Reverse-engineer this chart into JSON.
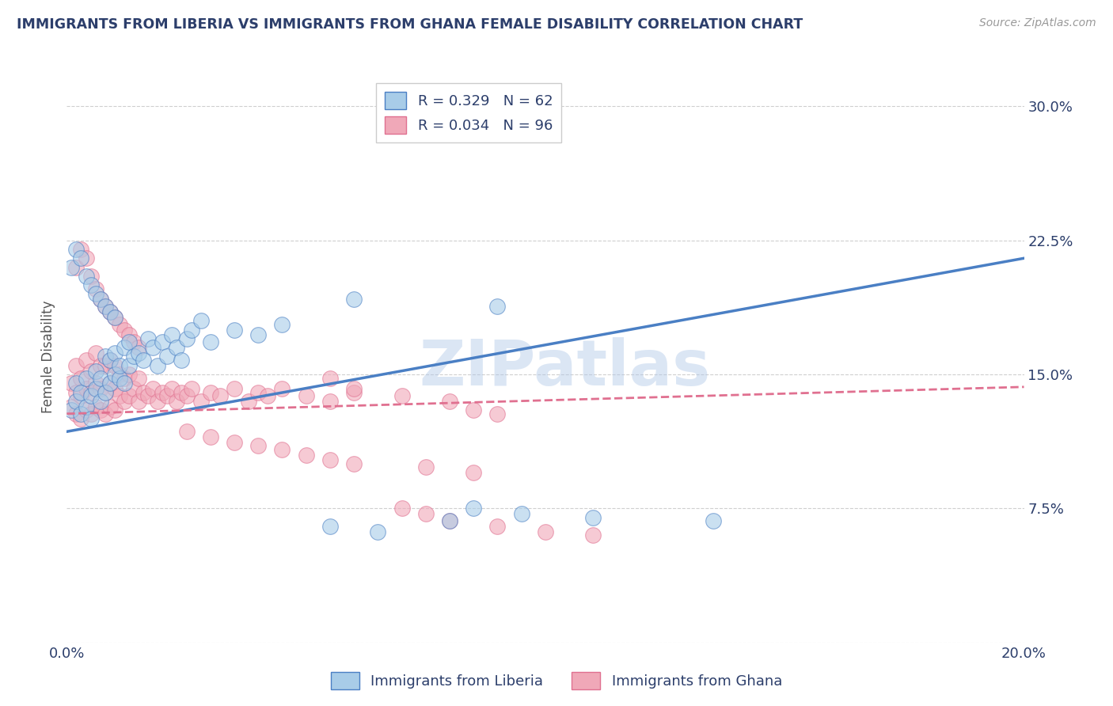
{
  "title": "IMMIGRANTS FROM LIBERIA VS IMMIGRANTS FROM GHANA FEMALE DISABILITY CORRELATION CHART",
  "source": "Source: ZipAtlas.com",
  "xlabel": "",
  "ylabel": "Female Disability",
  "xlim": [
    0.0,
    0.2
  ],
  "ylim": [
    0.0,
    0.32
  ],
  "xticks": [
    0.0,
    0.05,
    0.1,
    0.15,
    0.2
  ],
  "xticklabels": [
    "0.0%",
    "",
    "",
    "",
    "20.0%"
  ],
  "yticks": [
    0.0,
    0.075,
    0.15,
    0.225,
    0.3
  ],
  "yticklabels": [
    "",
    "7.5%",
    "15.0%",
    "22.5%",
    "30.0%"
  ],
  "R_liberia": 0.329,
  "N_liberia": 62,
  "R_ghana": 0.034,
  "N_ghana": 96,
  "color_liberia": "#a8cce8",
  "color_ghana": "#f0a8b8",
  "color_liberia_line": "#4a7fc4",
  "color_ghana_line": "#e07090",
  "background_color": "#ffffff",
  "grid_color": "#bbbbbb",
  "title_color": "#2c3e6b",
  "watermark": "ZIPatlas",
  "legend_liberia": "Immigrants from Liberia",
  "legend_ghana": "Immigrants from Ghana",
  "liberia_line_x0": 0.0,
  "liberia_line_y0": 0.118,
  "liberia_line_x1": 0.2,
  "liberia_line_y1": 0.215,
  "ghana_line_x0": 0.0,
  "ghana_line_y0": 0.128,
  "ghana_line_x1": 0.2,
  "ghana_line_y1": 0.143,
  "liberia_scatter_x": [
    0.001,
    0.002,
    0.002,
    0.003,
    0.003,
    0.004,
    0.004,
    0.005,
    0.005,
    0.006,
    0.006,
    0.007,
    0.007,
    0.008,
    0.008,
    0.009,
    0.009,
    0.01,
    0.01,
    0.011,
    0.011,
    0.012,
    0.012,
    0.013,
    0.013,
    0.014,
    0.015,
    0.016,
    0.017,
    0.018,
    0.019,
    0.02,
    0.021,
    0.022,
    0.023,
    0.024,
    0.025,
    0.026,
    0.028,
    0.03,
    0.001,
    0.002,
    0.003,
    0.004,
    0.005,
    0.006,
    0.007,
    0.008,
    0.009,
    0.01,
    0.035,
    0.04,
    0.045,
    0.055,
    0.065,
    0.08,
    0.085,
    0.095,
    0.11,
    0.135,
    0.06,
    0.09
  ],
  "liberia_scatter_y": [
    0.13,
    0.135,
    0.145,
    0.128,
    0.14,
    0.132,
    0.148,
    0.125,
    0.138,
    0.142,
    0.152,
    0.135,
    0.148,
    0.14,
    0.16,
    0.145,
    0.158,
    0.15,
    0.162,
    0.148,
    0.155,
    0.145,
    0.165,
    0.155,
    0.168,
    0.16,
    0.162,
    0.158,
    0.17,
    0.165,
    0.155,
    0.168,
    0.16,
    0.172,
    0.165,
    0.158,
    0.17,
    0.175,
    0.18,
    0.168,
    0.21,
    0.22,
    0.215,
    0.205,
    0.2,
    0.195,
    0.192,
    0.188,
    0.185,
    0.182,
    0.175,
    0.172,
    0.178,
    0.065,
    0.062,
    0.068,
    0.075,
    0.072,
    0.07,
    0.068,
    0.192,
    0.188
  ],
  "ghana_scatter_x": [
    0.001,
    0.001,
    0.002,
    0.002,
    0.002,
    0.003,
    0.003,
    0.003,
    0.004,
    0.004,
    0.004,
    0.005,
    0.005,
    0.005,
    0.006,
    0.006,
    0.006,
    0.007,
    0.007,
    0.007,
    0.008,
    0.008,
    0.008,
    0.009,
    0.009,
    0.009,
    0.01,
    0.01,
    0.01,
    0.011,
    0.011,
    0.012,
    0.012,
    0.013,
    0.013,
    0.014,
    0.015,
    0.015,
    0.016,
    0.017,
    0.018,
    0.019,
    0.02,
    0.021,
    0.022,
    0.023,
    0.024,
    0.025,
    0.026,
    0.028,
    0.03,
    0.032,
    0.035,
    0.038,
    0.04,
    0.042,
    0.045,
    0.05,
    0.055,
    0.06,
    0.002,
    0.003,
    0.004,
    0.005,
    0.006,
    0.007,
    0.008,
    0.009,
    0.01,
    0.011,
    0.012,
    0.013,
    0.014,
    0.015,
    0.055,
    0.06,
    0.07,
    0.08,
    0.085,
    0.09,
    0.025,
    0.03,
    0.035,
    0.04,
    0.045,
    0.05,
    0.055,
    0.06,
    0.075,
    0.085,
    0.07,
    0.075,
    0.08,
    0.09,
    0.1,
    0.11
  ],
  "ghana_scatter_y": [
    0.132,
    0.145,
    0.128,
    0.14,
    0.155,
    0.125,
    0.138,
    0.148,
    0.13,
    0.142,
    0.158,
    0.128,
    0.14,
    0.152,
    0.132,
    0.145,
    0.162,
    0.13,
    0.142,
    0.155,
    0.128,
    0.14,
    0.155,
    0.132,
    0.145,
    0.158,
    0.13,
    0.142,
    0.155,
    0.138,
    0.15,
    0.135,
    0.148,
    0.138,
    0.15,
    0.142,
    0.135,
    0.148,
    0.14,
    0.138,
    0.142,
    0.135,
    0.14,
    0.138,
    0.142,
    0.135,
    0.14,
    0.138,
    0.142,
    0.135,
    0.14,
    0.138,
    0.142,
    0.135,
    0.14,
    0.138,
    0.142,
    0.138,
    0.135,
    0.14,
    0.21,
    0.22,
    0.215,
    0.205,
    0.198,
    0.192,
    0.188,
    0.185,
    0.182,
    0.178,
    0.175,
    0.172,
    0.168,
    0.165,
    0.148,
    0.142,
    0.138,
    0.135,
    0.13,
    0.128,
    0.118,
    0.115,
    0.112,
    0.11,
    0.108,
    0.105,
    0.102,
    0.1,
    0.098,
    0.095,
    0.075,
    0.072,
    0.068,
    0.065,
    0.062,
    0.06
  ]
}
